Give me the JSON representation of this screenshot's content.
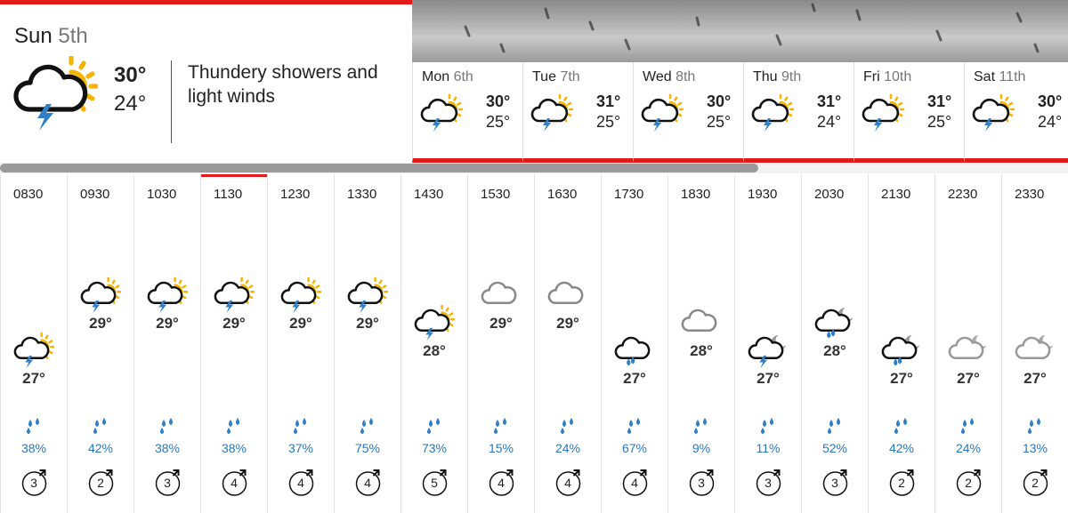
{
  "today": {
    "day": "Sun",
    "date": "5th",
    "high": "30°",
    "low": "24°",
    "description": "Thundery showers and light winds"
  },
  "days": [
    {
      "day": "Mon",
      "date": "6th",
      "high": "30°",
      "low": "25°"
    },
    {
      "day": "Tue",
      "date": "7th",
      "high": "31°",
      "low": "25°"
    },
    {
      "day": "Wed",
      "date": "8th",
      "high": "30°",
      "low": "25°"
    },
    {
      "day": "Thu",
      "date": "9th",
      "high": "31°",
      "low": "24°"
    },
    {
      "day": "Fri",
      "date": "10th",
      "high": "31°",
      "low": "25°"
    },
    {
      "day": "Sat",
      "date": "11th",
      "high": "30°",
      "low": "24°"
    }
  ],
  "hours": [
    {
      "time": "0830",
      "temp": 27,
      "temp_label": "27°",
      "rain": "38%",
      "wind": "3"
    },
    {
      "time": "0930",
      "temp": 29,
      "temp_label": "29°",
      "rain": "42%",
      "wind": "2"
    },
    {
      "time": "1030",
      "temp": 29,
      "temp_label": "29°",
      "rain": "38%",
      "wind": "3"
    },
    {
      "time": "1130",
      "temp": 29,
      "temp_label": "29°",
      "rain": "38%",
      "wind": "4"
    },
    {
      "time": "1230",
      "temp": 29,
      "temp_label": "29°",
      "rain": "37%",
      "wind": "4"
    },
    {
      "time": "1330",
      "temp": 29,
      "temp_label": "29°",
      "rain": "75%",
      "wind": "4"
    },
    {
      "time": "1430",
      "temp": 28,
      "temp_label": "28°",
      "rain": "73%",
      "wind": "5"
    },
    {
      "time": "1530",
      "temp": 29,
      "temp_label": "29°",
      "rain": "15%",
      "wind": "4"
    },
    {
      "time": "1630",
      "temp": 29,
      "temp_label": "29°",
      "rain": "24%",
      "wind": "4"
    },
    {
      "time": "1730",
      "temp": 27,
      "temp_label": "27°",
      "rain": "67%",
      "wind": "4"
    },
    {
      "time": "1830",
      "temp": 28,
      "temp_label": "28°",
      "rain": "9%",
      "wind": "3"
    },
    {
      "time": "1930",
      "temp": 27,
      "temp_label": "27°",
      "rain": "11%",
      "wind": "3"
    },
    {
      "time": "2030",
      "temp": 28,
      "temp_label": "28°",
      "rain": "52%",
      "wind": "3"
    },
    {
      "time": "2130",
      "temp": 27,
      "temp_label": "27°",
      "rain": "42%",
      "wind": "2"
    },
    {
      "time": "2230",
      "temp": 27,
      "temp_label": "27°",
      "rain": "24%",
      "wind": "2"
    },
    {
      "time": "2330",
      "temp": 27,
      "temp_label": "27°",
      "rain": "13%",
      "wind": "2"
    }
  ]
}
